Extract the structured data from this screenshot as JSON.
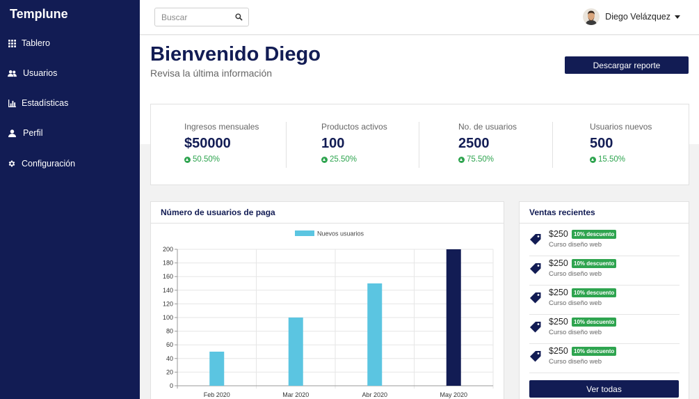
{
  "sidebar": {
    "brand": "Templune",
    "items": [
      {
        "label": "Tablero",
        "icon": "grid-icon"
      },
      {
        "label": "Usuarios",
        "icon": "users-icon"
      },
      {
        "label": "Estadísticas",
        "icon": "bar-chart-icon"
      },
      {
        "label": "Perfil",
        "icon": "user-icon"
      },
      {
        "label": "Configuración",
        "icon": "gear-icon"
      }
    ]
  },
  "topbar": {
    "search_placeholder": "Buscar",
    "user_name": "Diego Velázquez"
  },
  "header": {
    "title": "Bienvenido Diego",
    "subtitle": "Revisa la última información",
    "report_button": "Descargar reporte"
  },
  "stats": [
    {
      "label": "Ingresos mensuales",
      "value": "$50000",
      "change": "50.50%"
    },
    {
      "label": "Productos activos",
      "value": "100",
      "change": "25.50%"
    },
    {
      "label": "No. de usuarios",
      "value": "2500",
      "change": "75.50%"
    },
    {
      "label": "Usuarios nuevos",
      "value": "500",
      "change": "15.50%"
    }
  ],
  "chart_card": {
    "title": "Número de usuarios de paga"
  },
  "chart_data": {
    "type": "bar",
    "categories": [
      "Feb 2020",
      "Mar 2020",
      "Abr 2020",
      "May 2020"
    ],
    "series": [
      {
        "name": "Nuevos usuarios",
        "values": [
          50,
          100,
          150,
          200
        ]
      }
    ],
    "bar_colors": [
      "#5bc5e1",
      "#5bc5e1",
      "#5bc5e1",
      "#121c54"
    ],
    "legend_color": "#5bc5e1",
    "ylim": [
      0,
      200
    ],
    "yticks": [
      0,
      20,
      40,
      60,
      80,
      100,
      120,
      140,
      160,
      180,
      200
    ],
    "legend_position": "top",
    "grid": true
  },
  "sales": {
    "title": "Ventas recientes",
    "items": [
      {
        "price": "$250",
        "badge": "10% descuento",
        "course": "Curso diseño web"
      },
      {
        "price": "$250",
        "badge": "10% descuento",
        "course": "Curso diseño web"
      },
      {
        "price": "$250",
        "badge": "10% descuento",
        "course": "Curso diseño web"
      },
      {
        "price": "$250",
        "badge": "10% descuento",
        "course": "Curso diseño web"
      },
      {
        "price": "$250",
        "badge": "10% descuento",
        "course": "Curso diseño web"
      }
    ],
    "all_button": "Ver todas"
  },
  "colors": {
    "brand": "#121c54",
    "accent": "#5bc5e1",
    "success": "#2ea44f"
  }
}
